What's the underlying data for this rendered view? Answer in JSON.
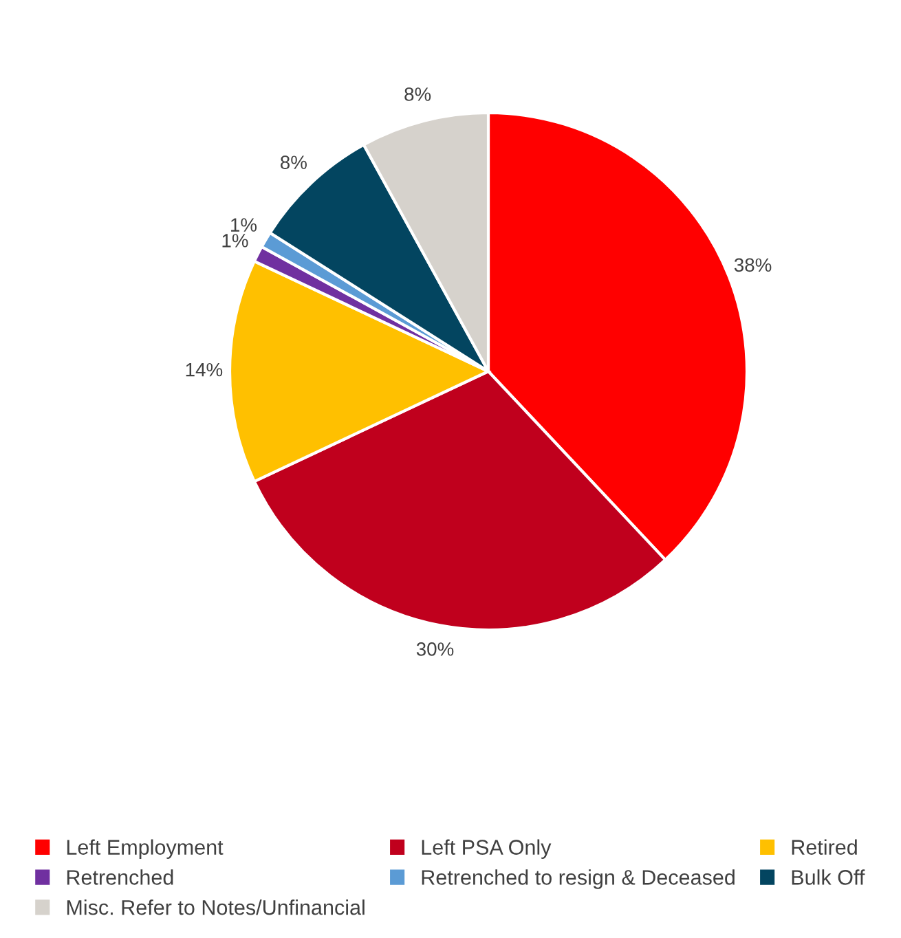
{
  "chart_data": {
    "type": "pie",
    "categories": [
      "Left Employment",
      "Left PSA Only",
      "Retired",
      "Retrenched",
      "Retrenched to resign & Deceased",
      "Bulk Off",
      "Misc. Refer to Notes/Unfinancial"
    ],
    "values": [
      38,
      30,
      14,
      1,
      1,
      8,
      8
    ],
    "colors": [
      "#ff0000",
      "#c0001d",
      "#ffc000",
      "#7030a0",
      "#5b9bd5",
      "#034560",
      "#d6d2cc"
    ],
    "value_labels": [
      "38%",
      "30%",
      "14%",
      "1%",
      "1%",
      "8%",
      "8%"
    ],
    "legend": "bottom"
  }
}
